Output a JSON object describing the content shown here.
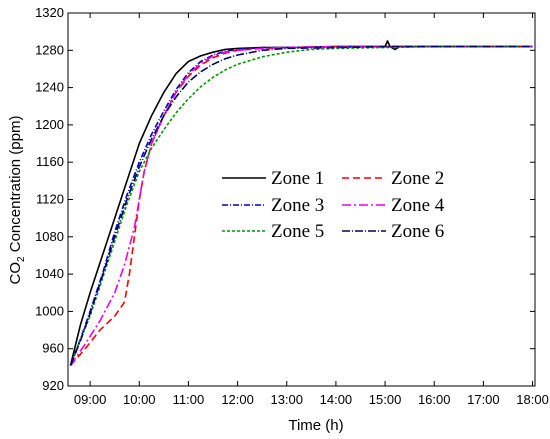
{
  "chart_data": {
    "type": "line",
    "xlabel": "Time (h)",
    "ylabel_main": "CO",
    "ylabel_sub": "2",
    "ylabel_tail": " Concentration (ppm)",
    "xlim": [
      8.55,
      18.05
    ],
    "ylim": [
      920,
      1320
    ],
    "xticks": [
      {
        "v": 9,
        "label": "09:00"
      },
      {
        "v": 10,
        "label": "10:00"
      },
      {
        "v": 11,
        "label": "11:00"
      },
      {
        "v": 12,
        "label": "12:00"
      },
      {
        "v": 13,
        "label": "13:00"
      },
      {
        "v": 14,
        "label": "14:00"
      },
      {
        "v": 15,
        "label": "15:00"
      },
      {
        "v": 16,
        "label": "16:00"
      },
      {
        "v": 17,
        "label": "17:00"
      },
      {
        "v": 18,
        "label": "18:00"
      }
    ],
    "yticks": [
      920,
      960,
      1000,
      1040,
      1080,
      1120,
      1160,
      1200,
      1240,
      1280,
      1320
    ],
    "legend_position": "center",
    "series": [
      {
        "name": "Zone 1",
        "color": "#000000",
        "dash": "",
        "x": [
          8.6,
          8.8,
          9.0,
          9.25,
          9.5,
          9.75,
          10.0,
          10.25,
          10.5,
          10.75,
          11.0,
          11.25,
          11.5,
          11.75,
          12.0,
          12.5,
          13.0,
          14.0,
          15.0,
          15.05,
          15.1,
          15.2,
          15.3,
          16.0,
          17.0,
          18.0
        ],
        "y": [
          942,
          985,
          1020,
          1060,
          1100,
          1140,
          1180,
          1210,
          1235,
          1255,
          1268,
          1274,
          1278,
          1281,
          1282,
          1283,
          1283,
          1284,
          1284,
          1290,
          1284,
          1281,
          1284,
          1284,
          1284,
          1284
        ]
      },
      {
        "name": "Zone 2",
        "color": "#ff0000",
        "dash": "7,4",
        "x": [
          8.6,
          8.9,
          9.2,
          9.5,
          9.7,
          9.8,
          9.9,
          10.0,
          10.1,
          10.25,
          10.5,
          10.75,
          11.0,
          11.25,
          11.5,
          11.75,
          12.0,
          12.5,
          13.0,
          14.0,
          15.0,
          16.0,
          17.0,
          18.0
        ],
        "y": [
          942,
          960,
          980,
          995,
          1010,
          1040,
          1080,
          1120,
          1150,
          1180,
          1210,
          1235,
          1252,
          1264,
          1272,
          1277,
          1280,
          1282,
          1283,
          1284,
          1284,
          1284,
          1284,
          1284
        ]
      },
      {
        "name": "Zone 3",
        "color": "#0000cc",
        "dash": "6,2,1,2",
        "x": [
          8.6,
          8.8,
          9.0,
          9.25,
          9.5,
          9.75,
          10.0,
          10.25,
          10.5,
          10.75,
          11.0,
          11.25,
          11.5,
          11.75,
          12.0,
          12.5,
          13.0,
          14.0,
          15.0,
          16.0,
          17.0,
          18.0
        ],
        "y": [
          942,
          970,
          1000,
          1040,
          1085,
          1125,
          1160,
          1190,
          1215,
          1238,
          1256,
          1268,
          1275,
          1279,
          1281,
          1283,
          1283,
          1284,
          1284,
          1284,
          1284,
          1284
        ]
      },
      {
        "name": "Zone 4",
        "color": "#ee00ee",
        "dash": "9,3,2,3",
        "x": [
          8.6,
          8.9,
          9.2,
          9.5,
          9.7,
          9.9,
          10.0,
          10.1,
          10.25,
          10.5,
          10.75,
          11.0,
          11.25,
          11.5,
          11.75,
          12.0,
          12.5,
          13.0,
          14.0,
          15.0,
          16.0,
          17.0,
          18.0
        ],
        "y": [
          942,
          965,
          990,
          1020,
          1050,
          1090,
          1120,
          1150,
          1180,
          1210,
          1235,
          1254,
          1266,
          1274,
          1278,
          1280,
          1282,
          1283,
          1284,
          1284,
          1284,
          1284,
          1284
        ]
      },
      {
        "name": "Zone 5",
        "color": "#009900",
        "dash": "3,2",
        "x": [
          8.6,
          8.8,
          9.0,
          9.25,
          9.5,
          9.75,
          10.0,
          10.25,
          10.5,
          10.75,
          11.0,
          11.25,
          11.5,
          11.75,
          12.0,
          12.5,
          13.0,
          13.5,
          14.0,
          15.0,
          16.0,
          17.0,
          18.0
        ],
        "y": [
          942,
          970,
          995,
          1035,
          1075,
          1115,
          1150,
          1175,
          1195,
          1213,
          1228,
          1241,
          1251,
          1259,
          1265,
          1273,
          1278,
          1281,
          1282,
          1283,
          1284,
          1284,
          1284
        ]
      },
      {
        "name": "Zone 6",
        "color": "#000066",
        "dash": "8,2,1,2",
        "x": [
          8.6,
          8.8,
          9.0,
          9.25,
          9.5,
          9.75,
          10.0,
          10.25,
          10.5,
          10.75,
          11.0,
          11.25,
          11.5,
          11.75,
          12.0,
          12.5,
          13.0,
          14.0,
          15.0,
          16.0,
          17.0,
          18.0
        ],
        "y": [
          942,
          968,
          998,
          1038,
          1080,
          1120,
          1155,
          1185,
          1210,
          1230,
          1246,
          1257,
          1265,
          1271,
          1275,
          1280,
          1282,
          1283,
          1284,
          1284,
          1284,
          1284
        ]
      }
    ]
  }
}
